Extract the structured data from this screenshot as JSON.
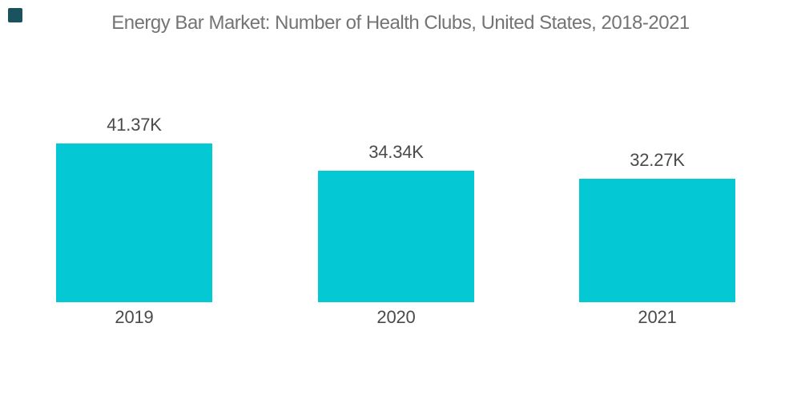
{
  "header": {
    "title": "Energy Bar Market: Number of Health Clubs, United States, 2018-2021"
  },
  "branding": {
    "mark_color": "#1A535E"
  },
  "colors": {
    "background": "#FFFFFF",
    "bar": "#04C8D3",
    "title_text": "#747474",
    "label_text": "#4A4A4A"
  },
  "chart_data": {
    "type": "bar",
    "title": "Energy Bar Market: Number of Health Clubs, United States, 2018-2021",
    "categories": [
      "2019",
      "2020",
      "2021"
    ],
    "values": [
      41.37,
      34.34,
      32.27
    ],
    "value_labels": [
      "41.37K",
      "34.34K",
      "32.27K"
    ],
    "unit": "K",
    "xlabel": "",
    "ylabel": "",
    "ylim": [
      0,
      41.37
    ],
    "grid": false,
    "legend": false,
    "axes_visible": false,
    "bar_label_position": "above",
    "category_label_position": "below"
  }
}
